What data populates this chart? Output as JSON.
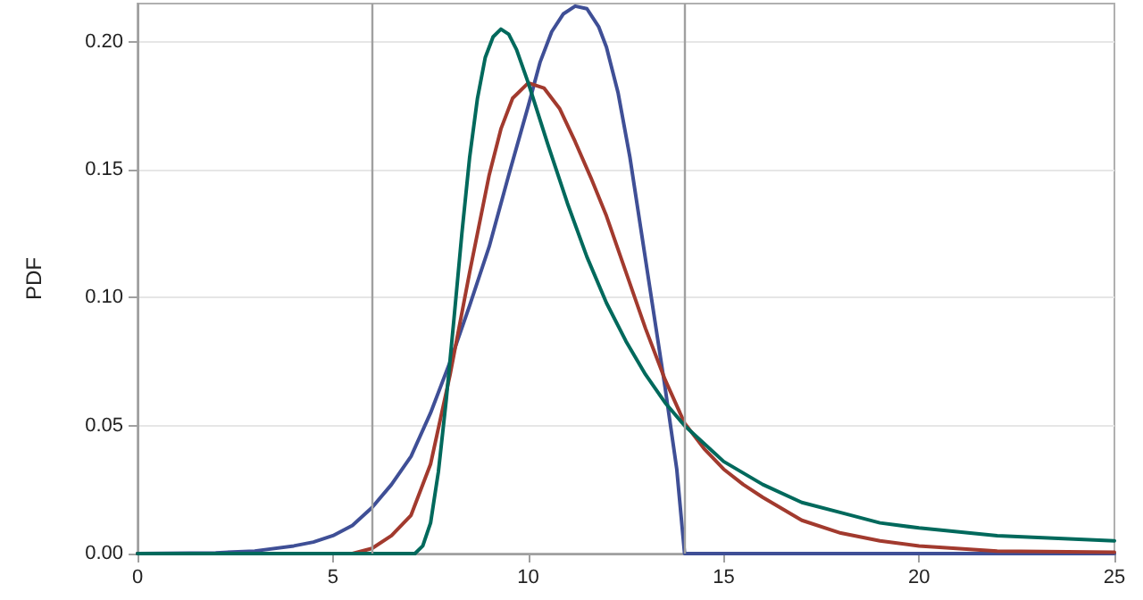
{
  "chart_data": {
    "type": "line",
    "ylabel": "PDF",
    "xlim": [
      0,
      25
    ],
    "xticks": [
      0,
      5,
      10,
      15,
      20,
      25
    ],
    "ylim": [
      0,
      0.215
    ],
    "yticks": [
      {
        "value": 0,
        "label": "0.00"
      },
      {
        "value": 0.05,
        "label": "0.05"
      },
      {
        "value": 0.1,
        "label": "0.10"
      },
      {
        "value": 0.15,
        "label": "0.15"
      },
      {
        "value": 0.2,
        "label": "0.20"
      }
    ],
    "grid": "y",
    "marker": "none",
    "line_style": "solid",
    "ref_lines": [
      {
        "axis": "x",
        "value": 6,
        "color": "#a0a0a0"
      },
      {
        "axis": "x",
        "value": 14,
        "color": "#a0a0a0"
      }
    ],
    "series": [
      {
        "color": "#3f4f96",
        "x": [
          0,
          2,
          3,
          4,
          4.5,
          5,
          5.5,
          6,
          6.5,
          7,
          7.5,
          8,
          8.5,
          9,
          9.5,
          10,
          10.3,
          10.6,
          10.9,
          11.2,
          11.5,
          11.8,
          12,
          12.3,
          12.6,
          12.9,
          13.2,
          13.5,
          13.8,
          14,
          25
        ],
        "values": [
          0,
          0.0003,
          0.001,
          0.003,
          0.0045,
          0.007,
          0.011,
          0.018,
          0.027,
          0.038,
          0.055,
          0.075,
          0.097,
          0.12,
          0.148,
          0.175,
          0.192,
          0.204,
          0.211,
          0.214,
          0.213,
          0.206,
          0.198,
          0.18,
          0.155,
          0.125,
          0.095,
          0.065,
          0.033,
          0,
          0
        ]
      },
      {
        "color": "#a23a2e",
        "x": [
          0,
          5.5,
          6,
          6.5,
          7,
          7.5,
          8,
          8.5,
          9,
          9.3,
          9.6,
          10,
          10.4,
          10.8,
          11.2,
          11.6,
          12,
          12.5,
          13,
          13.5,
          14,
          14.5,
          15,
          15.5,
          16,
          17,
          18,
          19,
          20,
          22,
          25
        ],
        "values": [
          0,
          0,
          0.002,
          0.007,
          0.015,
          0.035,
          0.07,
          0.11,
          0.148,
          0.166,
          0.178,
          0.184,
          0.182,
          0.174,
          0.161,
          0.147,
          0.132,
          0.11,
          0.088,
          0.068,
          0.051,
          0.041,
          0.033,
          0.027,
          0.022,
          0.013,
          0.008,
          0.005,
          0.003,
          0.001,
          0.0005
        ]
      },
      {
        "color": "#00695c",
        "x": [
          0,
          7.1,
          7.3,
          7.5,
          7.7,
          7.9,
          8.1,
          8.3,
          8.5,
          8.7,
          8.9,
          9.1,
          9.3,
          9.5,
          9.7,
          10,
          10.5,
          11,
          11.5,
          12,
          12.5,
          13,
          13.5,
          14,
          15,
          16,
          17,
          18,
          19,
          20,
          22,
          25
        ],
        "values": [
          0,
          0,
          0.003,
          0.012,
          0.032,
          0.06,
          0.092,
          0.125,
          0.155,
          0.178,
          0.194,
          0.202,
          0.205,
          0.203,
          0.197,
          0.184,
          0.16,
          0.137,
          0.116,
          0.098,
          0.083,
          0.07,
          0.059,
          0.05,
          0.036,
          0.027,
          0.02,
          0.016,
          0.012,
          0.01,
          0.007,
          0.005
        ]
      }
    ]
  }
}
